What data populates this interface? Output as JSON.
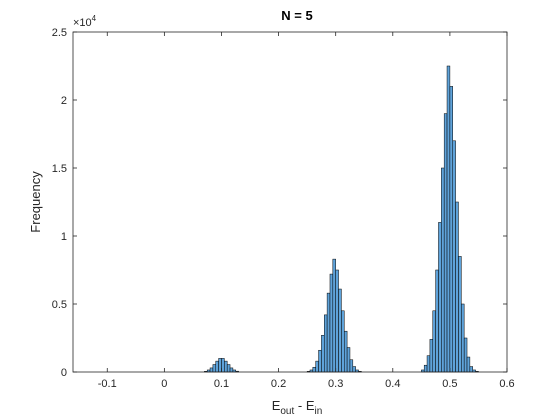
{
  "chart_data": {
    "type": "bar",
    "title": "N = 5",
    "xlabel": {
      "base1": "E",
      "sub1": "out",
      "mid": " - E",
      "sub2": "in"
    },
    "ylabel": "Frequency",
    "y_exponent": {
      "base": "×10",
      "power": "4"
    },
    "xlim": [
      -0.16,
      0.6
    ],
    "ylim": [
      0,
      25000
    ],
    "xticks": [
      -0.1,
      0,
      0.1,
      0.2,
      0.3,
      0.4,
      0.5,
      0.6
    ],
    "xtick_labels": [
      "-0.1",
      "0",
      "0.1",
      "0.2",
      "0.3",
      "0.4",
      "0.5",
      "0.6"
    ],
    "yticks": [
      0,
      5000,
      10000,
      15000,
      20000,
      25000
    ],
    "ytick_labels": [
      "0",
      "0.5",
      "1",
      "1.5",
      "2",
      "2.5"
    ],
    "grid": false,
    "bin_width": 0.005,
    "bar_color": "#5fa3da",
    "edge_color": "#000000",
    "bins": [
      {
        "x": 0.0725,
        "y": 50
      },
      {
        "x": 0.0775,
        "y": 150
      },
      {
        "x": 0.0825,
        "y": 300
      },
      {
        "x": 0.0875,
        "y": 550
      },
      {
        "x": 0.0925,
        "y": 800
      },
      {
        "x": 0.0975,
        "y": 1000
      },
      {
        "x": 0.1025,
        "y": 1000
      },
      {
        "x": 0.1075,
        "y": 800
      },
      {
        "x": 0.1125,
        "y": 550
      },
      {
        "x": 0.1175,
        "y": 300
      },
      {
        "x": 0.1225,
        "y": 150
      },
      {
        "x": 0.1275,
        "y": 60
      },
      {
        "x": 0.2525,
        "y": 50
      },
      {
        "x": 0.2575,
        "y": 150
      },
      {
        "x": 0.2625,
        "y": 350
      },
      {
        "x": 0.2675,
        "y": 800
      },
      {
        "x": 0.2725,
        "y": 1600
      },
      {
        "x": 0.2775,
        "y": 2700
      },
      {
        "x": 0.2825,
        "y": 4200
      },
      {
        "x": 0.2875,
        "y": 5800
      },
      {
        "x": 0.2925,
        "y": 7200
      },
      {
        "x": 0.2975,
        "y": 8300
      },
      {
        "x": 0.3025,
        "y": 7500
      },
      {
        "x": 0.3075,
        "y": 6100
      },
      {
        "x": 0.3125,
        "y": 4500
      },
      {
        "x": 0.3175,
        "y": 3000
      },
      {
        "x": 0.3225,
        "y": 1800
      },
      {
        "x": 0.3275,
        "y": 900
      },
      {
        "x": 0.3325,
        "y": 400
      },
      {
        "x": 0.3375,
        "y": 150
      },
      {
        "x": 0.3425,
        "y": 50
      },
      {
        "x": 0.4525,
        "y": 150
      },
      {
        "x": 0.4575,
        "y": 500
      },
      {
        "x": 0.4625,
        "y": 1200
      },
      {
        "x": 0.4675,
        "y": 2400
      },
      {
        "x": 0.4725,
        "y": 4500
      },
      {
        "x": 0.4775,
        "y": 7500
      },
      {
        "x": 0.4825,
        "y": 11000
      },
      {
        "x": 0.4875,
        "y": 15000
      },
      {
        "x": 0.4925,
        "y": 19000
      },
      {
        "x": 0.4975,
        "y": 22500
      },
      {
        "x": 0.5025,
        "y": 21000
      },
      {
        "x": 0.5075,
        "y": 17000
      },
      {
        "x": 0.5125,
        "y": 12500
      },
      {
        "x": 0.5175,
        "y": 8500
      },
      {
        "x": 0.5225,
        "y": 5000
      },
      {
        "x": 0.5275,
        "y": 2500
      },
      {
        "x": 0.5325,
        "y": 1100
      },
      {
        "x": 0.5375,
        "y": 400
      },
      {
        "x": 0.5425,
        "y": 150
      },
      {
        "x": 0.5475,
        "y": 50
      }
    ]
  }
}
